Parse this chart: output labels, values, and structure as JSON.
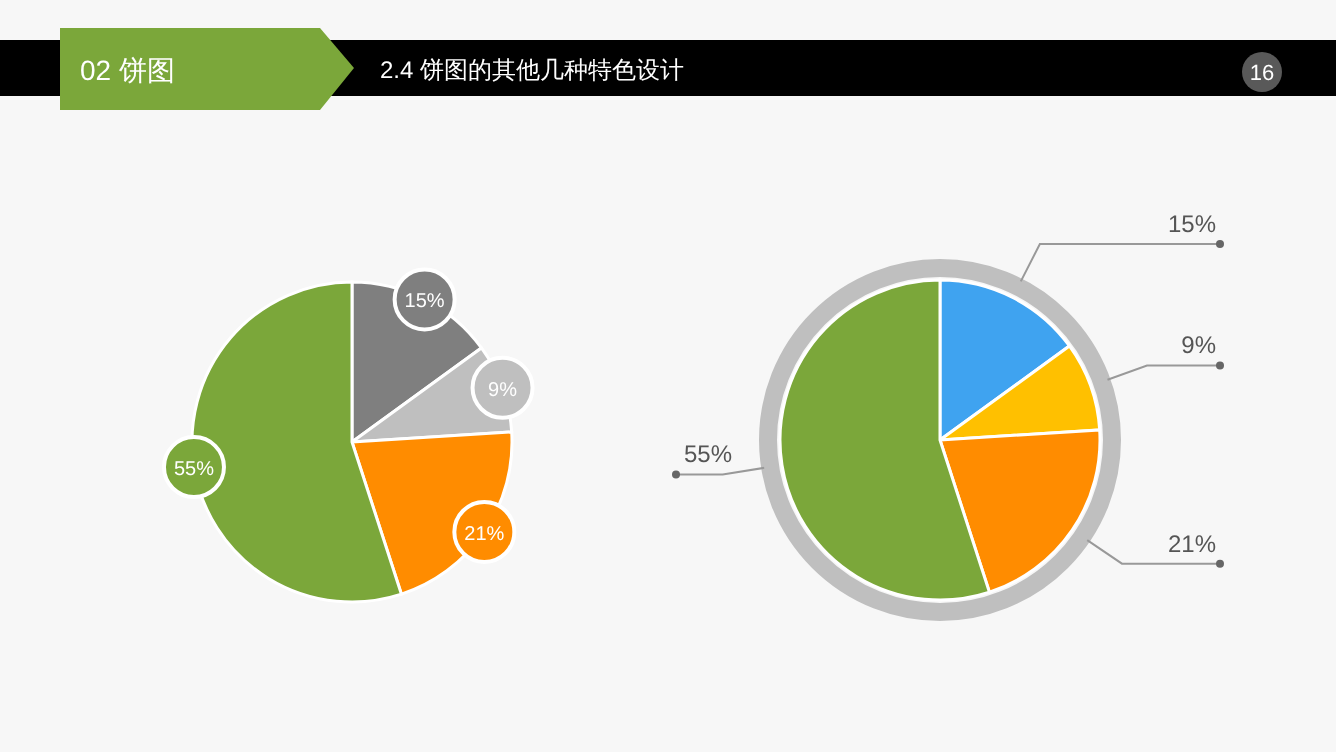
{
  "chart_data": [
    {
      "type": "pie",
      "title": "02 饼图",
      "subtitle": "2.4  饼图的其他几种特色设计",
      "annotations": [
        "16"
      ],
      "categories": [
        null,
        null,
        null,
        null
      ],
      "values": [
        15,
        9,
        21,
        55
      ],
      "colors": [
        "#7f7f7f",
        "#bfbfbf",
        "#ff8c00",
        "#7ba73a"
      ],
      "data_labels": true,
      "value_labels": [
        "15%",
        "9%",
        "21%",
        "55%"
      ]
    },
    {
      "type": "pie",
      "categories": [
        null,
        null,
        null,
        null
      ],
      "values": [
        15,
        9,
        21,
        55
      ],
      "colors": [
        "#3fa3f0",
        "#ffc000",
        "#ff8c00",
        "#7ba73a"
      ],
      "data_labels": true,
      "value_labels": [
        "15%",
        "9%",
        "21%",
        "55%"
      ]
    }
  ]
}
